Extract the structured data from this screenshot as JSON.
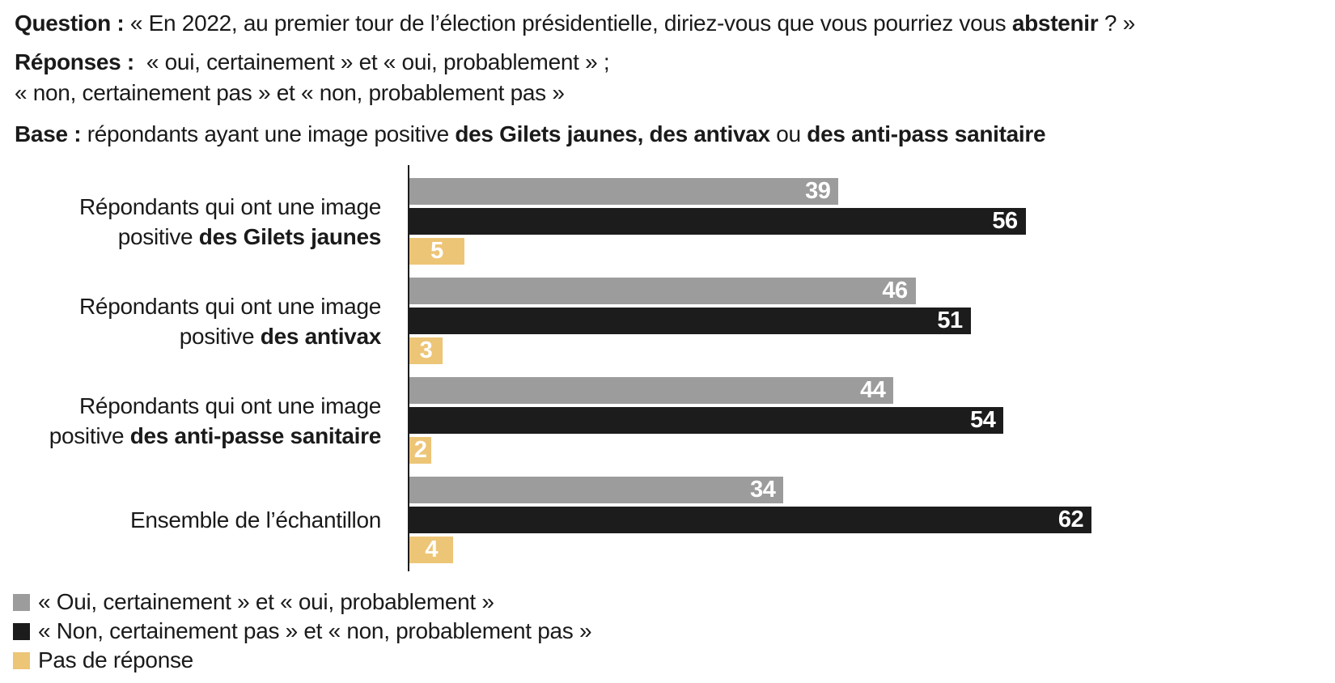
{
  "header": {
    "question": {
      "label": "Question :",
      "pre": " « En 2022, au premier tour de l’élection présidentielle, diriez-vous que vous pourriez vous ",
      "bold": "abstenir",
      "post": " ? »"
    },
    "responses": {
      "label": "Réponses :",
      "line1": "  « oui, certainement » et « oui, probablement » ;",
      "line2": "« non, certainement pas » et « non, probablement pas »"
    },
    "base": {
      "label": "Base :",
      "text1": " répondants ayant une image positive ",
      "bold1": "des Gilets jaunes, des antivax",
      "text2": " ou ",
      "bold2": "des anti-pass sanitaire"
    }
  },
  "chart_data": {
    "type": "bar",
    "orientation": "horizontal",
    "value_unit": "percent",
    "xlim": [
      0,
      62
    ],
    "grid": false,
    "legend_position": "bottom-left",
    "value_labels": "inside-end-white-bold",
    "categories": [
      {
        "line1": "Répondants qui ont une image",
        "line2_regular": "positive ",
        "line2_bold": "des Gilets jaunes"
      },
      {
        "line1": "Répondants qui ont une image",
        "line2_regular": "positive ",
        "line2_bold": "des antivax"
      },
      {
        "line1": "Répondants qui ont une image",
        "line2_regular": "positive ",
        "line2_bold": "des anti-passe sanitaire"
      },
      {
        "label": "Ensemble de l’échantillon"
      }
    ],
    "series": [
      {
        "name": "« Oui, certainement » et « oui, probablement »",
        "color": "#9c9c9c",
        "values": [
          39,
          46,
          44,
          34
        ]
      },
      {
        "name": "« Non, certainement pas » et « non, probablement pas »",
        "color": "#1c1c1c",
        "values": [
          56,
          51,
          54,
          62
        ]
      },
      {
        "name": "Pas de réponse",
        "color": "#edc577",
        "values": [
          5,
          3,
          2,
          4
        ]
      }
    ],
    "axis_color": "#1c1c1c"
  }
}
